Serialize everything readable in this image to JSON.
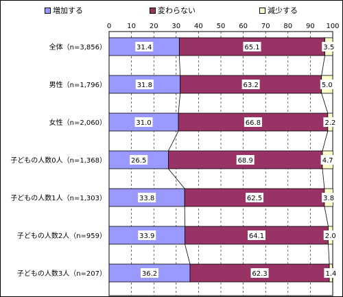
{
  "chart_data": {
    "type": "bar",
    "stacked": true,
    "orientation": "horizontal",
    "categories": [
      "全体（n=3,856）",
      "男性（n=1,796）",
      "女性（n=2,060）",
      "子どもの人数0人（n=1,368）",
      "子どもの人数1人（n=1,303）",
      "子どもの人数2人（n=959）",
      "子どもの人数3人（n=207）"
    ],
    "series": [
      {
        "name": "増加する",
        "values": [
          31.4,
          31.8,
          31.0,
          26.5,
          33.8,
          33.9,
          36.2
        ],
        "color": "#9999ff"
      },
      {
        "name": "変わらない",
        "values": [
          65.1,
          63.2,
          66.8,
          68.9,
          62.5,
          64.1,
          62.3
        ],
        "color": "#993366"
      },
      {
        "name": "減少する",
        "values": [
          3.5,
          5.0,
          2.2,
          4.7,
          3.8,
          2.0,
          1.4
        ],
        "color": "#ffffcc"
      }
    ],
    "data_labels": [
      [
        "31.4",
        "65.1",
        "3.5"
      ],
      [
        "31.8",
        "63.2",
        "5.0"
      ],
      [
        "31.0",
        "66.8",
        "2.2"
      ],
      [
        "26.5",
        "68.9",
        "4.7"
      ],
      [
        "33.8",
        "62.5",
        "3.8"
      ],
      [
        "33.9",
        "64.1",
        "2.0"
      ],
      [
        "36.2",
        "62.3",
        "1.4"
      ]
    ],
    "x_ticks": [
      "0",
      "10",
      "20",
      "30",
      "40",
      "50",
      "60",
      "70",
      "80",
      "90",
      "100"
    ],
    "xlim": [
      0,
      100
    ],
    "grid": "vertical-dashed",
    "legend_position": "top",
    "series_lines": true
  }
}
